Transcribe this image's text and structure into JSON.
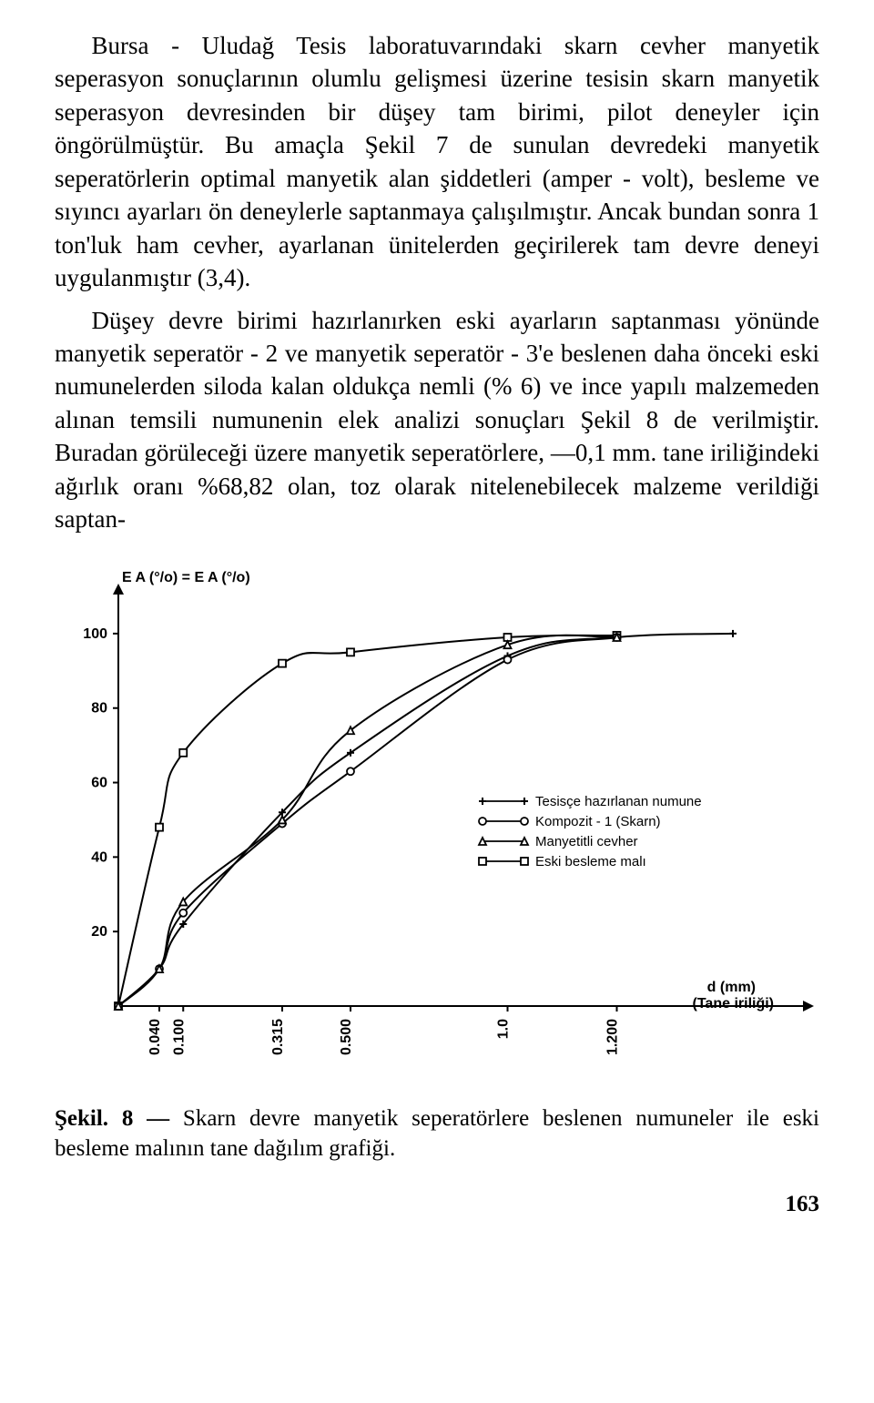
{
  "paragraphs": [
    "Bursa - Uludağ Tesis laboratuvarındaki skarn cevher manyetik seperasyon sonuçlarının olumlu gelişmesi üzerine tesisin skarn manyetik seperasyon devresinden bir düşey tam birimi, pilot deneyler için öngörülmüştür. Bu amaçla Şekil 7 de sunulan devredeki manyetik seperatörlerin optimal manyetik alan şiddetleri (amper - volt), besleme ve sıyıncı ayarları ön deneylerle saptanmaya çalışılmıştır. Ancak bundan sonra 1 ton'luk ham cevher, ayarlanan ünitelerden geçirilerek tam devre deneyi uygulanmıştır (3,4).",
    "Düşey devre birimi hazırlanırken eski ayarların saptanması yönünde manyetik seperatör - 2 ve manyetik seperatör - 3'e beslenen daha önceki eski numunelerden siloda kalan oldukça nemli (% 6) ve ince yapılı malzemeden alınan temsili numunenin elek analizi sonuçları Şekil 8 de verilmiştir. Buradan görüleceği üzere manyetik seperatörlere, —0,1 mm. tane iriliğindeki ağırlık oranı %68,82 olan, toz olarak nitelenebilecek malzeme verildiği saptan-"
  ],
  "caption": {
    "lead": "Şekil. 8 —",
    "rest": " Skarn devre manyetik seperatörlere beslenen numuneler ile eski besleme malının tane dağılım grafiği."
  },
  "page_number": "163",
  "chart": {
    "type": "line",
    "y_axis_title": "E A (°/o) = E A (°/o)",
    "x_axis_title_1": "d (mm)",
    "x_axis_title_2": "(Tane iriliği)",
    "ylim": [
      0,
      110
    ],
    "ytick_step": 20,
    "yticks": [
      "20",
      "40",
      "60",
      "80",
      "100"
    ],
    "x_ticks": [
      {
        "label": "0.040",
        "pos": 0.06
      },
      {
        "label": "0.100",
        "pos": 0.095
      },
      {
        "label": "0.315",
        "pos": 0.24
      },
      {
        "label": "0.500",
        "pos": 0.34
      },
      {
        "label": "1.0",
        "pos": 0.57
      },
      {
        "label": "1.200",
        "pos": 0.73
      }
    ],
    "legend": [
      {
        "marker": "plus",
        "label": "Tesisçe hazırlanan numune"
      },
      {
        "marker": "circle",
        "label": "Kompozit - 1 (Skarn)"
      },
      {
        "marker": "triangle",
        "label": "Manyetitli cevher"
      },
      {
        "marker": "square",
        "label": "Eski besleme malı"
      }
    ],
    "colors": {
      "stroke": "#000000",
      "bg": "#ffffff"
    },
    "line_width": 2,
    "marker_size": 8,
    "series": [
      {
        "name": "eski-besleme",
        "marker": "square",
        "points": [
          {
            "x": 0.0,
            "y": 0
          },
          {
            "x": 0.06,
            "y": 48
          },
          {
            "x": 0.095,
            "y": 68
          },
          {
            "x": 0.24,
            "y": 92
          },
          {
            "x": 0.34,
            "y": 95
          },
          {
            "x": 0.57,
            "y": 99
          },
          {
            "x": 0.73,
            "y": 99.5
          }
        ]
      },
      {
        "name": "tesis-numune",
        "marker": "plus",
        "points": [
          {
            "x": 0.0,
            "y": 0
          },
          {
            "x": 0.06,
            "y": 10
          },
          {
            "x": 0.095,
            "y": 22
          },
          {
            "x": 0.24,
            "y": 52
          },
          {
            "x": 0.34,
            "y": 68
          },
          {
            "x": 0.57,
            "y": 94
          },
          {
            "x": 0.73,
            "y": 99
          },
          {
            "x": 0.9,
            "y": 100
          }
        ]
      },
      {
        "name": "kompozit-1",
        "marker": "circle",
        "points": [
          {
            "x": 0.0,
            "y": 0
          },
          {
            "x": 0.06,
            "y": 10
          },
          {
            "x": 0.095,
            "y": 25
          },
          {
            "x": 0.24,
            "y": 49
          },
          {
            "x": 0.34,
            "y": 63
          },
          {
            "x": 0.57,
            "y": 93
          },
          {
            "x": 0.73,
            "y": 99
          }
        ]
      },
      {
        "name": "manyetitli",
        "marker": "triangle",
        "points": [
          {
            "x": 0.0,
            "y": 0
          },
          {
            "x": 0.06,
            "y": 10
          },
          {
            "x": 0.095,
            "y": 28
          },
          {
            "x": 0.24,
            "y": 50
          },
          {
            "x": 0.34,
            "y": 74
          },
          {
            "x": 0.57,
            "y": 97
          },
          {
            "x": 0.73,
            "y": 99
          }
        ]
      }
    ]
  }
}
